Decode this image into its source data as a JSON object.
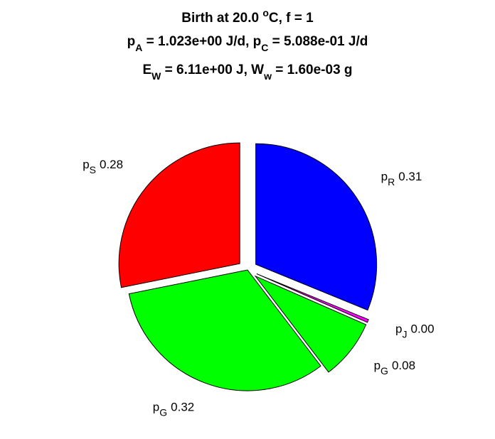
{
  "chart_data": {
    "type": "pie",
    "title": [
      [
        "Birth at 20.0 ",
        "o",
        "C, f = 1"
      ],
      [
        "p",
        "A",
        " = 1.023e+00 J/d, p",
        "C",
        " = 5.088e-01 J/d"
      ],
      [
        "E",
        "W",
        " = 6.11e+00 J, W",
        "w",
        " = 1.60e-03 g"
      ]
    ],
    "categories": [
      {
        "text": "p",
        "sub": "R"
      },
      {
        "text": "p",
        "sub": "J"
      },
      {
        "text": "p",
        "sub": "G"
      },
      {
        "text": "p",
        "sub": "G"
      },
      {
        "text": "p",
        "sub": "S"
      }
    ],
    "values": [
      0.31,
      0.004,
      0.08,
      0.32,
      0.28
    ],
    "value_labels": [
      "0.31",
      "0.00",
      "0.08",
      "0.32",
      "0.28"
    ],
    "colors": [
      "#0000ff",
      "#ff00ff",
      "#00ff00",
      "#00ff00",
      "#ff0000"
    ],
    "explode": [
      1,
      1,
      1,
      0,
      1
    ]
  }
}
